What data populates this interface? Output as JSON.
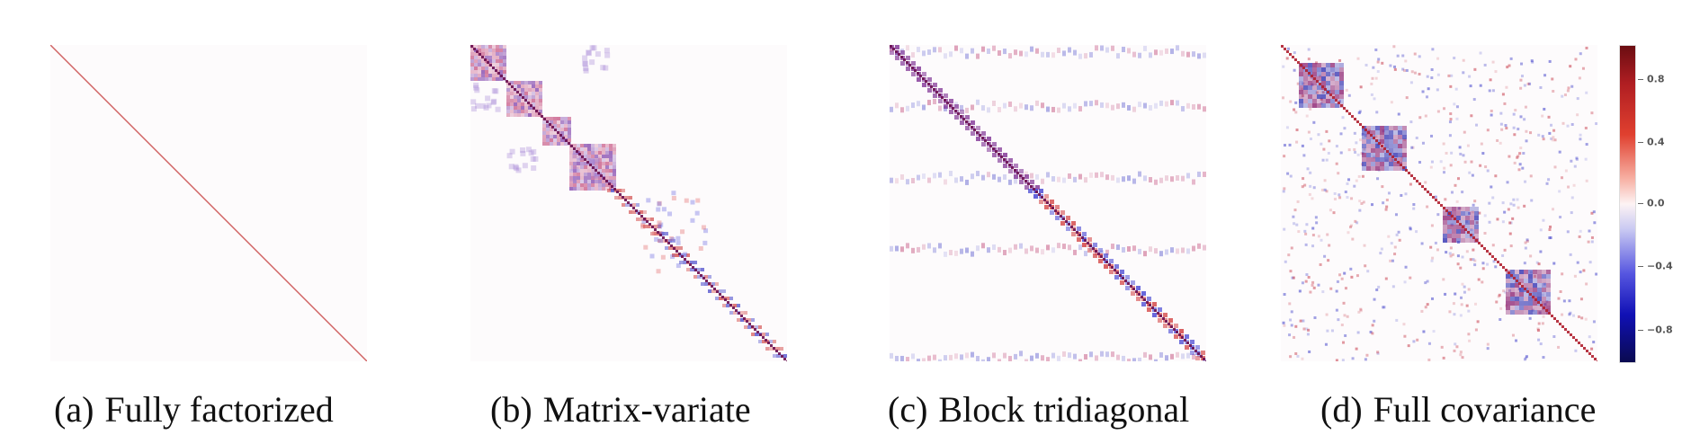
{
  "panels": [
    {
      "label": "(a)",
      "title": "Fully factorized"
    },
    {
      "label": "(b)",
      "title": "Matrix-variate"
    },
    {
      "label": "(c)",
      "title": "Block tridiagonal"
    },
    {
      "label": "(d)",
      "title": "Full covariance"
    }
  ],
  "colorbar": {
    "ticks": [
      "0.8",
      "0.4",
      "0.0",
      "−0.4",
      "−0.8"
    ],
    "tick_values": [
      0.8,
      0.4,
      0.0,
      -0.4,
      -0.8
    ],
    "range": [
      -1,
      1
    ]
  },
  "colors": {
    "positive": "#b5202a",
    "negative": "#2020c8",
    "diag": "#d05050"
  }
}
